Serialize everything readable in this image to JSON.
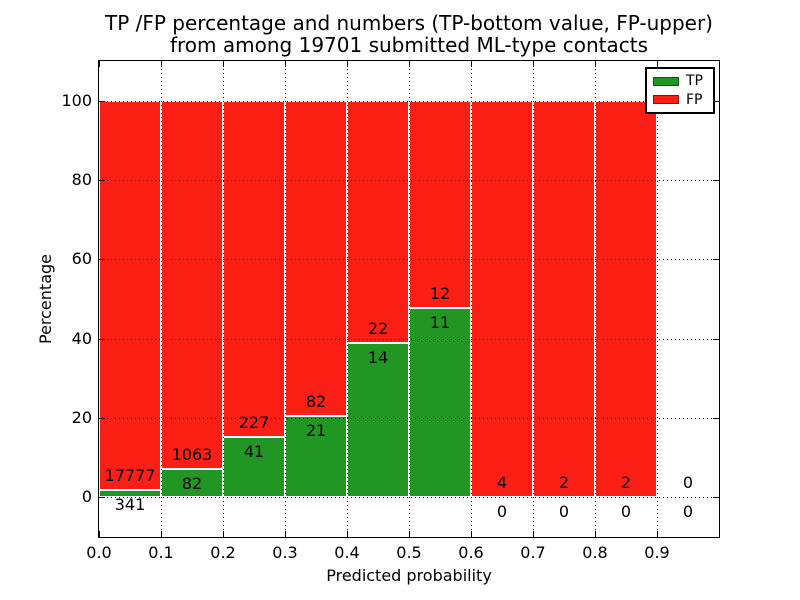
{
  "chart_data": {
    "type": "bar",
    "stacked": true,
    "orientation": "vertical",
    "title_lines": [
      "TP /FP percentage and numbers (TP-bottom value, FP-upper)",
      "from among 19701 submitted ML-type contacts"
    ],
    "total_contacts": 19701,
    "xlabel": "Predicted probability",
    "ylabel": "Percentage",
    "xlim": [
      0.0,
      1.0
    ],
    "ylim": [
      -10,
      110
    ],
    "xticks": [
      "0.0",
      "0.1",
      "0.2",
      "0.3",
      "0.4",
      "0.5",
      "0.6",
      "0.7",
      "0.8",
      "0.9"
    ],
    "yticks": [
      0,
      20,
      40,
      60,
      80,
      100
    ],
    "grid": "dotted",
    "legend": {
      "position": "upper right",
      "entries": [
        {
          "label": "TP",
          "color": "#229622"
        },
        {
          "label": "FP",
          "color": "#fc1f16"
        }
      ]
    },
    "series": [
      {
        "name": "TP",
        "color": "#229622",
        "values_pct": [
          1.88,
          7.16,
          15.3,
          20.39,
          38.89,
          47.83,
          0,
          0,
          0,
          0
        ]
      },
      {
        "name": "FP",
        "color": "#fc1f16",
        "values_pct": [
          98.12,
          92.84,
          84.7,
          79.61,
          61.11,
          52.17,
          100,
          100,
          100,
          0
        ]
      }
    ],
    "bins": [
      {
        "x_start": 0.0,
        "x_end": 0.1,
        "tp_count": 341,
        "fp_count": 17777,
        "tp_pct": 1.88,
        "fp_pct": 98.12
      },
      {
        "x_start": 0.1,
        "x_end": 0.2,
        "tp_count": 82,
        "fp_count": 1063,
        "tp_pct": 7.16,
        "fp_pct": 92.84
      },
      {
        "x_start": 0.2,
        "x_end": 0.3,
        "tp_count": 41,
        "fp_count": 227,
        "tp_pct": 15.3,
        "fp_pct": 84.7
      },
      {
        "x_start": 0.3,
        "x_end": 0.4,
        "tp_count": 21,
        "fp_count": 82,
        "tp_pct": 20.39,
        "fp_pct": 79.61
      },
      {
        "x_start": 0.4,
        "x_end": 0.5,
        "tp_count": 14,
        "fp_count": 22,
        "tp_pct": 38.89,
        "fp_pct": 61.11
      },
      {
        "x_start": 0.5,
        "x_end": 0.6,
        "tp_count": 11,
        "fp_count": 12,
        "tp_pct": 47.83,
        "fp_pct": 52.17
      },
      {
        "x_start": 0.6,
        "x_end": 0.7,
        "tp_count": 0,
        "fp_count": 4,
        "tp_pct": 0,
        "fp_pct": 100
      },
      {
        "x_start": 0.7,
        "x_end": 0.8,
        "tp_count": 0,
        "fp_count": 2,
        "tp_pct": 0,
        "fp_pct": 100
      },
      {
        "x_start": 0.8,
        "x_end": 0.9,
        "tp_count": 0,
        "fp_count": 2,
        "tp_pct": 0,
        "fp_pct": 100
      },
      {
        "x_start": 0.9,
        "x_end": 1.0,
        "tp_count": 0,
        "fp_count": 0,
        "tp_pct": 0,
        "fp_pct": 0
      }
    ],
    "colors": {
      "tp": "#229622",
      "fp": "#fc1f16",
      "bar_edge": "#ffffff",
      "grid": "#000000",
      "frame": "#000000",
      "text": "#000000",
      "background": "#ffffff"
    }
  }
}
